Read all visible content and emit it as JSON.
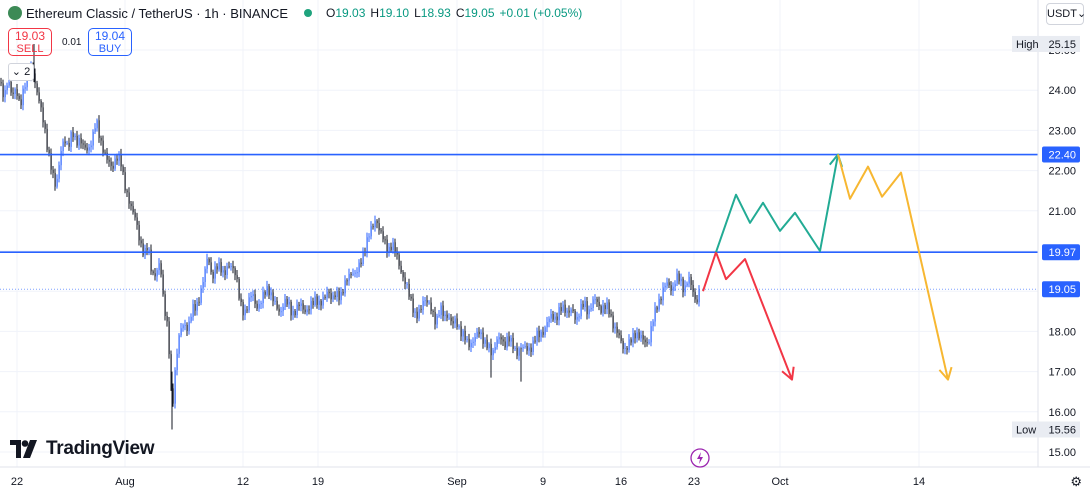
{
  "header": {
    "title": "Ethereum Classic / TetherUS · 1h · BINANCE",
    "open_label": "O",
    "open": "19.03",
    "high_label": "H",
    "high": "19.10",
    "low_label": "L",
    "low": "18.93",
    "close_label": "C",
    "close": "19.05",
    "change": "+0.01 (+0.05%)"
  },
  "trade": {
    "sell_price": "19.03",
    "sell_label": "SELL",
    "buy_price": "19.04",
    "buy_label": "BUY",
    "spread": "0.01"
  },
  "collapse_label": "2",
  "currency_button": "USDT",
  "brand": "TradingView",
  "colors": {
    "candle_up": "#2962ff",
    "candle_down": "#131722",
    "level_line": "#2962ff",
    "arrow_red": "#f23645",
    "arrow_green": "#22ab94",
    "arrow_yellow": "#f7b731",
    "current_price_bg": "#2962ff"
  },
  "chart_data": {
    "type": "candlestick",
    "symbol": "ETCUSDT",
    "ylim": [
      14.85,
      25.55
    ],
    "y_ticks": [
      15.0,
      16.0,
      17.0,
      18.0,
      19.0,
      20.0,
      21.0,
      22.0,
      23.0,
      24.0,
      25.0
    ],
    "x_ticks": [
      "22",
      "Aug",
      "12",
      "19",
      "Sep",
      "9",
      "16",
      "23",
      "Oct",
      "14"
    ],
    "price_path": [
      [
        0,
        24.2
      ],
      [
        4,
        23.8
      ],
      [
        8,
        24.4
      ],
      [
        12,
        23.9
      ],
      [
        16,
        24.0
      ],
      [
        20,
        23.7
      ],
      [
        24,
        24.1
      ],
      [
        28,
        24.3
      ],
      [
        32,
        24.7
      ],
      [
        36,
        24.0
      ],
      [
        40,
        23.6
      ],
      [
        44,
        23.2
      ],
      [
        48,
        22.4
      ],
      [
        52,
        21.9
      ],
      [
        56,
        21.6
      ],
      [
        60,
        22.3
      ],
      [
        64,
        22.7
      ],
      [
        68,
        22.6
      ],
      [
        72,
        22.9
      ],
      [
        76,
        22.6
      ],
      [
        80,
        22.8
      ],
      [
        84,
        22.5
      ],
      [
        88,
        22.4
      ],
      [
        92,
        22.8
      ],
      [
        96,
        23.2
      ],
      [
        100,
        22.7
      ],
      [
        104,
        22.5
      ],
      [
        108,
        22.2
      ],
      [
        112,
        22.0
      ],
      [
        116,
        22.4
      ],
      [
        120,
        22.3
      ],
      [
        124,
        21.7
      ],
      [
        128,
        21.4
      ],
      [
        132,
        21.0
      ],
      [
        136,
        20.8
      ],
      [
        140,
        20.3
      ],
      [
        144,
        19.9
      ],
      [
        148,
        20.2
      ],
      [
        152,
        19.5
      ],
      [
        156,
        19.4
      ],
      [
        160,
        19.8
      ],
      [
        164,
        18.7
      ],
      [
        168,
        18.0
      ],
      [
        172,
        16.0
      ],
      [
        176,
        17.4
      ],
      [
        180,
        18.0
      ],
      [
        184,
        18.2
      ],
      [
        188,
        18.1
      ],
      [
        192,
        18.5
      ],
      [
        196,
        18.6
      ],
      [
        200,
        18.9
      ],
      [
        204,
        19.3
      ],
      [
        208,
        19.9
      ],
      [
        212,
        19.3
      ],
      [
        216,
        19.5
      ],
      [
        220,
        19.6
      ],
      [
        224,
        19.4
      ],
      [
        228,
        19.5
      ],
      [
        232,
        19.6
      ],
      [
        236,
        19.4
      ],
      [
        240,
        18.6
      ],
      [
        244,
        18.4
      ],
      [
        248,
        18.7
      ],
      [
        252,
        18.9
      ],
      [
        256,
        18.6
      ],
      [
        260,
        18.7
      ],
      [
        264,
        18.9
      ],
      [
        268,
        19.1
      ],
      [
        272,
        18.9
      ],
      [
        276,
        18.6
      ],
      [
        280,
        18.5
      ],
      [
        284,
        18.8
      ],
      [
        288,
        18.7
      ],
      [
        292,
        18.5
      ],
      [
        296,
        18.6
      ],
      [
        300,
        18.7
      ],
      [
        304,
        18.6
      ],
      [
        308,
        18.6
      ],
      [
        312,
        18.7
      ],
      [
        316,
        18.9
      ],
      [
        320,
        18.7
      ],
      [
        324,
        18.8
      ],
      [
        328,
        19.1
      ],
      [
        332,
        18.8
      ],
      [
        336,
        18.9
      ],
      [
        340,
        18.9
      ],
      [
        344,
        19.1
      ],
      [
        348,
        19.3
      ],
      [
        352,
        19.5
      ],
      [
        356,
        19.4
      ],
      [
        360,
        19.6
      ],
      [
        364,
        20.0
      ],
      [
        368,
        20.3
      ],
      [
        372,
        20.5
      ],
      [
        376,
        20.8
      ],
      [
        380,
        20.4
      ],
      [
        384,
        20.2
      ],
      [
        388,
        20.0
      ],
      [
        392,
        20.1
      ],
      [
        396,
        19.9
      ],
      [
        400,
        19.6
      ],
      [
        404,
        19.2
      ],
      [
        408,
        19.0
      ],
      [
        412,
        18.7
      ],
      [
        416,
        18.3
      ],
      [
        420,
        18.5
      ],
      [
        424,
        18.9
      ],
      [
        428,
        18.7
      ],
      [
        432,
        18.5
      ],
      [
        436,
        18.3
      ],
      [
        440,
        18.6
      ],
      [
        444,
        18.4
      ],
      [
        448,
        18.5
      ],
      [
        452,
        18.2
      ],
      [
        456,
        18.3
      ],
      [
        460,
        18.1
      ],
      [
        464,
        17.9
      ],
      [
        468,
        17.7
      ],
      [
        472,
        17.8
      ],
      [
        476,
        17.9
      ],
      [
        480,
        18.0
      ],
      [
        484,
        17.8
      ],
      [
        488,
        17.6
      ],
      [
        492,
        17.4
      ],
      [
        496,
        17.8
      ],
      [
        500,
        17.8
      ],
      [
        504,
        17.6
      ],
      [
        508,
        17.9
      ],
      [
        512,
        17.6
      ],
      [
        516,
        17.4
      ],
      [
        520,
        17.6
      ],
      [
        524,
        17.5
      ],
      [
        528,
        17.5
      ],
      [
        532,
        17.6
      ],
      [
        536,
        17.8
      ],
      [
        540,
        17.9
      ],
      [
        544,
        18.0
      ],
      [
        548,
        18.2
      ],
      [
        552,
        18.4
      ],
      [
        556,
        18.3
      ],
      [
        560,
        18.5
      ],
      [
        564,
        18.6
      ],
      [
        568,
        18.5
      ],
      [
        572,
        18.5
      ],
      [
        576,
        18.3
      ],
      [
        580,
        18.6
      ],
      [
        584,
        18.7
      ],
      [
        588,
        18.5
      ],
      [
        592,
        18.8
      ],
      [
        596,
        18.8
      ],
      [
        600,
        18.6
      ],
      [
        604,
        18.7
      ],
      [
        608,
        18.6
      ],
      [
        612,
        18.3
      ],
      [
        616,
        18.1
      ],
      [
        620,
        17.8
      ],
      [
        624,
        17.6
      ],
      [
        628,
        17.7
      ],
      [
        632,
        17.8
      ],
      [
        636,
        18.0
      ],
      [
        640,
        17.9
      ],
      [
        644,
        17.7
      ],
      [
        648,
        17.7
      ],
      [
        652,
        18.2
      ],
      [
        656,
        18.5
      ],
      [
        660,
        18.8
      ],
      [
        664,
        19.1
      ],
      [
        668,
        19.1
      ],
      [
        672,
        19.0
      ],
      [
        676,
        19.3
      ],
      [
        680,
        19.2
      ],
      [
        684,
        19.0
      ],
      [
        688,
        19.3
      ],
      [
        692,
        19.0
      ],
      [
        696,
        18.7
      ],
      [
        700,
        19.05
      ]
    ],
    "horizontal_levels": [
      22.4,
      19.97
    ],
    "current_price": 19.05,
    "price_labels": {
      "high_label": "High",
      "high": "25.15",
      "low_label": "Low",
      "low": "15.56",
      "level_upper": "22.40",
      "level_lower": "19.97",
      "current": "19.05"
    },
    "projections": {
      "red": [
        [
          703,
          19.0
        ],
        [
          716,
          19.97
        ],
        [
          726,
          19.3
        ],
        [
          745,
          19.8
        ],
        [
          792,
          16.8
        ]
      ],
      "green": [
        [
          716,
          19.97
        ],
        [
          736,
          21.4
        ],
        [
          750,
          20.7
        ],
        [
          763,
          21.2
        ],
        [
          780,
          20.5
        ],
        [
          795,
          20.95
        ],
        [
          820,
          20.0
        ],
        [
          838,
          22.4
        ]
      ],
      "yellow": [
        [
          838,
          22.4
        ],
        [
          850,
          21.3
        ],
        [
          868,
          22.1
        ],
        [
          882,
          21.35
        ],
        [
          901,
          21.95
        ],
        [
          948,
          16.8
        ]
      ]
    }
  }
}
